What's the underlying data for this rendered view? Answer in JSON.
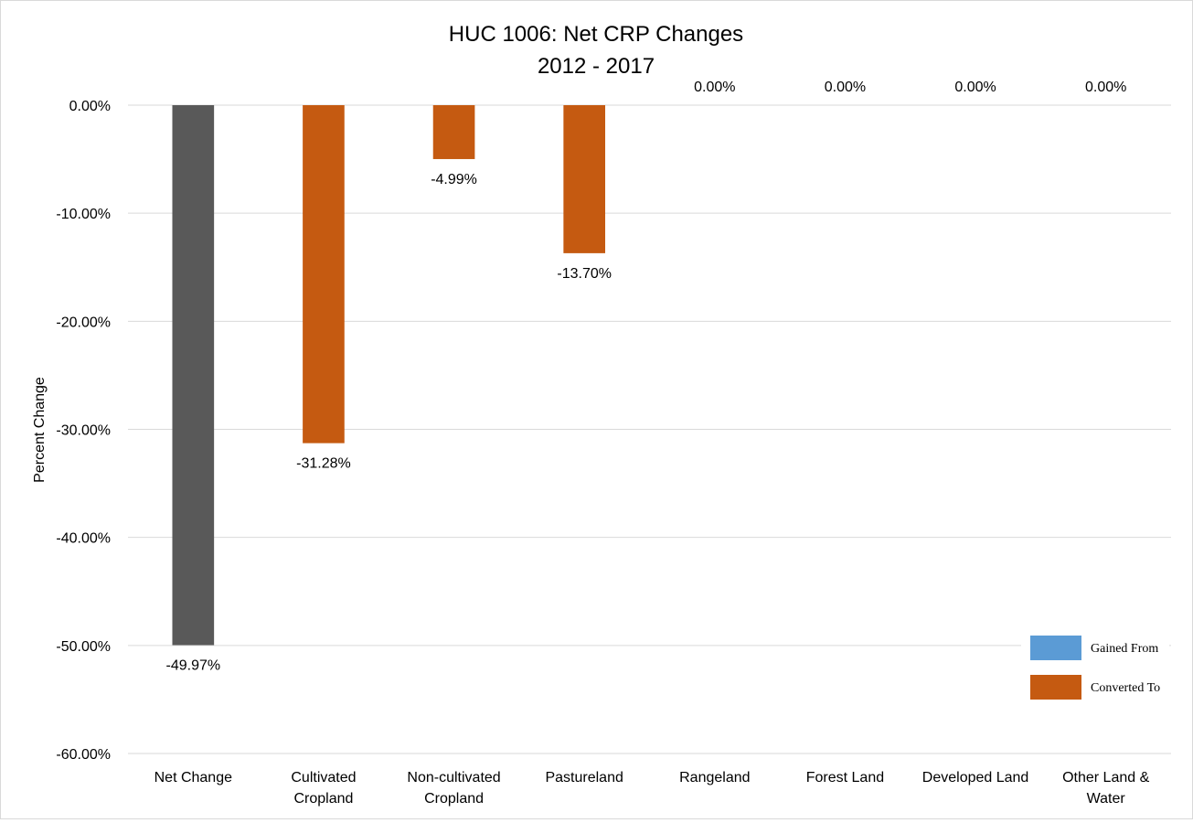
{
  "chart_data": {
    "type": "bar",
    "title": "HUC 1006: Net CRP Changes",
    "subtitle": "2012 - 2017",
    "xlabel": "",
    "ylabel": "Percent Change",
    "ylim": [
      -60,
      0
    ],
    "y_ticks": [
      "0.00%",
      "-10.00%",
      "-20.00%",
      "-30.00%",
      "-40.00%",
      "-50.00%",
      "-60.00%"
    ],
    "y_tick_values": [
      0,
      -10,
      -20,
      -30,
      -40,
      -50,
      -60
    ],
    "grid": true,
    "legend_position": "bottom-right",
    "categories": [
      [
        "Net Change"
      ],
      [
        "Cultivated",
        "Cropland"
      ],
      [
        "Non-cultivated",
        "Cropland"
      ],
      [
        "Pastureland"
      ],
      [
        "Rangeland"
      ],
      [
        "Forest Land"
      ],
      [
        "Developed Land"
      ],
      [
        "Other Land &",
        "Water"
      ]
    ],
    "values": [
      -49.97,
      -31.28,
      -4.99,
      -13.7,
      0.0,
      0.0,
      0.0,
      0.0
    ],
    "data_labels": [
      "-49.97%",
      "-31.28%",
      "-4.99%",
      "-13.70%",
      "0.00%",
      "0.00%",
      "0.00%",
      "0.00%"
    ],
    "bar_colors": [
      "#595959",
      "#c55a11",
      "#c55a11",
      "#c55a11",
      "#c55a11",
      "#c55a11",
      "#c55a11",
      "#c55a11"
    ],
    "legend": [
      {
        "label": "Gained From",
        "color": "#5b9bd5"
      },
      {
        "label": "Converted To",
        "color": "#c55a11"
      }
    ]
  }
}
